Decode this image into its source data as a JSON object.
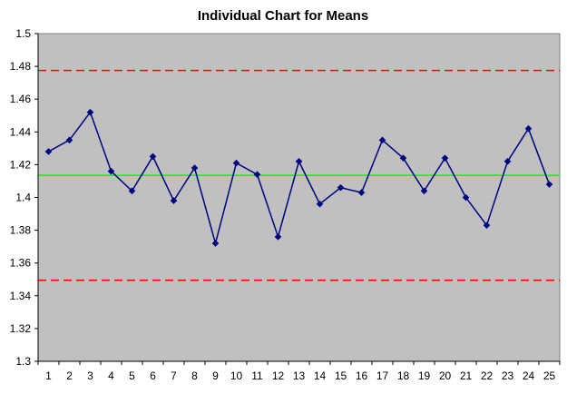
{
  "chart_data": {
    "type": "line",
    "title": "Individual Chart for Means",
    "xlabel": "",
    "ylabel": "",
    "categories": [
      "1",
      "2",
      "3",
      "4",
      "5",
      "6",
      "7",
      "8",
      "9",
      "10",
      "11",
      "12",
      "13",
      "14",
      "15",
      "16",
      "17",
      "18",
      "19",
      "20",
      "21",
      "22",
      "23",
      "24",
      "25"
    ],
    "series": [
      {
        "values": [
          1.428,
          1.435,
          1.452,
          1.416,
          1.404,
          1.425,
          1.398,
          1.418,
          1.372,
          1.421,
          1.414,
          1.376,
          1.422,
          1.396,
          1.406,
          1.403,
          1.435,
          1.424,
          1.404,
          1.424,
          1.4,
          1.383,
          1.422,
          1.442,
          1.408
        ],
        "color": "#000080",
        "marker": "diamond"
      }
    ],
    "reference_lines": [
      {
        "value": 1.4775,
        "color": "#ff0000",
        "style": "dashed"
      },
      {
        "value": 1.4135,
        "color": "#00ff00",
        "style": "solid"
      },
      {
        "value": 1.3495,
        "color": "#ff0000",
        "style": "dashed"
      }
    ],
    "ylim": [
      1.3,
      1.5
    ],
    "yticks": [
      "1.3",
      "1.32",
      "1.34",
      "1.36",
      "1.38",
      "1.4",
      "1.42",
      "1.44",
      "1.46",
      "1.48",
      "1.5"
    ],
    "grid": false,
    "legend": "none",
    "plot_background": "#c0c0c0"
  }
}
